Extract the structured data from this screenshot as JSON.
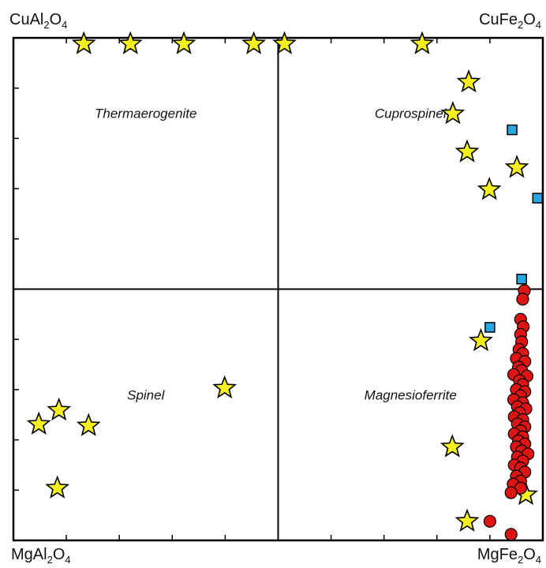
{
  "corners": {
    "top_left": {
      "base": "CuAl",
      "s1": "2",
      "mid": "O",
      "s2": "4"
    },
    "top_right": {
      "base": "CuFe",
      "s1": "2",
      "mid": "O",
      "s2": "4"
    },
    "bottom_left": {
      "base": "MgAl",
      "s1": "2",
      "mid": "O",
      "s2": "4"
    },
    "bottom_right": {
      "base": "MgFe",
      "s1": "2",
      "mid": "O",
      "s2": "4"
    }
  },
  "chart_data": {
    "type": "scatter",
    "xlim": [
      0,
      1
    ],
    "ylim": [
      0,
      1
    ],
    "grid": false,
    "dividers": {
      "x": 0.5,
      "y": 0.5
    },
    "region_labels": [
      {
        "text": "Thermaerogenite",
        "x": 0.25,
        "y": 0.85
      },
      {
        "text": "Cuprospinel",
        "x": 0.75,
        "y": 0.85
      },
      {
        "text": "Spinel",
        "x": 0.25,
        "y": 0.29
      },
      {
        "text": "Magnesioferrite",
        "x": 0.75,
        "y": 0.29
      }
    ],
    "colors": {
      "star": "#f5f01e",
      "square": "#2aa7e0",
      "circle": "#dc1414",
      "outline": "#000000"
    },
    "series": [
      {
        "marker": "star",
        "points": [
          [
            0.133,
            0.988
          ],
          [
            0.221,
            0.988
          ],
          [
            0.322,
            0.988
          ],
          [
            0.454,
            0.988
          ],
          [
            0.512,
            0.988
          ],
          [
            0.772,
            0.988
          ],
          [
            0.86,
            0.912
          ],
          [
            0.83,
            0.849
          ],
          [
            0.857,
            0.773
          ],
          [
            0.951,
            0.742
          ],
          [
            0.899,
            0.698
          ],
          [
            0.883,
            0.397
          ],
          [
            0.399,
            0.303
          ],
          [
            0.086,
            0.259
          ],
          [
            0.048,
            0.231
          ],
          [
            0.142,
            0.228
          ],
          [
            0.829,
            0.186
          ],
          [
            0.083,
            0.104
          ],
          [
            0.968,
            0.091
          ],
          [
            0.857,
            0.038
          ]
        ]
      },
      {
        "marker": "square",
        "points": [
          [
            0.942,
            0.817
          ],
          [
            0.99,
            0.681
          ],
          [
            0.96,
            0.52
          ],
          [
            0.9,
            0.424
          ]
        ]
      },
      {
        "marker": "circle",
        "points": [
          [
            0.965,
            0.497
          ],
          [
            0.962,
            0.48
          ],
          [
            0.958,
            0.44
          ],
          [
            0.963,
            0.425
          ],
          [
            0.958,
            0.41
          ],
          [
            0.96,
            0.395
          ],
          [
            0.955,
            0.38
          ],
          [
            0.962,
            0.372
          ],
          [
            0.95,
            0.362
          ],
          [
            0.966,
            0.356
          ],
          [
            0.954,
            0.345
          ],
          [
            0.96,
            0.338
          ],
          [
            0.945,
            0.33
          ],
          [
            0.97,
            0.327
          ],
          [
            0.956,
            0.318
          ],
          [
            0.962,
            0.31
          ],
          [
            0.95,
            0.3
          ],
          [
            0.966,
            0.296
          ],
          [
            0.958,
            0.288
          ],
          [
            0.945,
            0.28
          ],
          [
            0.962,
            0.274
          ],
          [
            0.952,
            0.266
          ],
          [
            0.968,
            0.262
          ],
          [
            0.956,
            0.254
          ],
          [
            0.946,
            0.246
          ],
          [
            0.962,
            0.24
          ],
          [
            0.952,
            0.232
          ],
          [
            0.966,
            0.226
          ],
          [
            0.958,
            0.218
          ],
          [
            0.946,
            0.212
          ],
          [
            0.962,
            0.206
          ],
          [
            0.954,
            0.198
          ],
          [
            0.966,
            0.192
          ],
          [
            0.95,
            0.186
          ],
          [
            0.96,
            0.178
          ],
          [
            0.972,
            0.172
          ],
          [
            0.952,
            0.166
          ],
          [
            0.962,
            0.158
          ],
          [
            0.946,
            0.15
          ],
          [
            0.958,
            0.144
          ],
          [
            0.966,
            0.136
          ],
          [
            0.95,
            0.128
          ],
          [
            0.958,
            0.118
          ],
          [
            0.944,
            0.112
          ],
          [
            0.958,
            0.104
          ],
          [
            0.94,
            0.095
          ],
          [
            0.9,
            0.038
          ],
          [
            0.94,
            0.012
          ]
        ]
      }
    ]
  }
}
